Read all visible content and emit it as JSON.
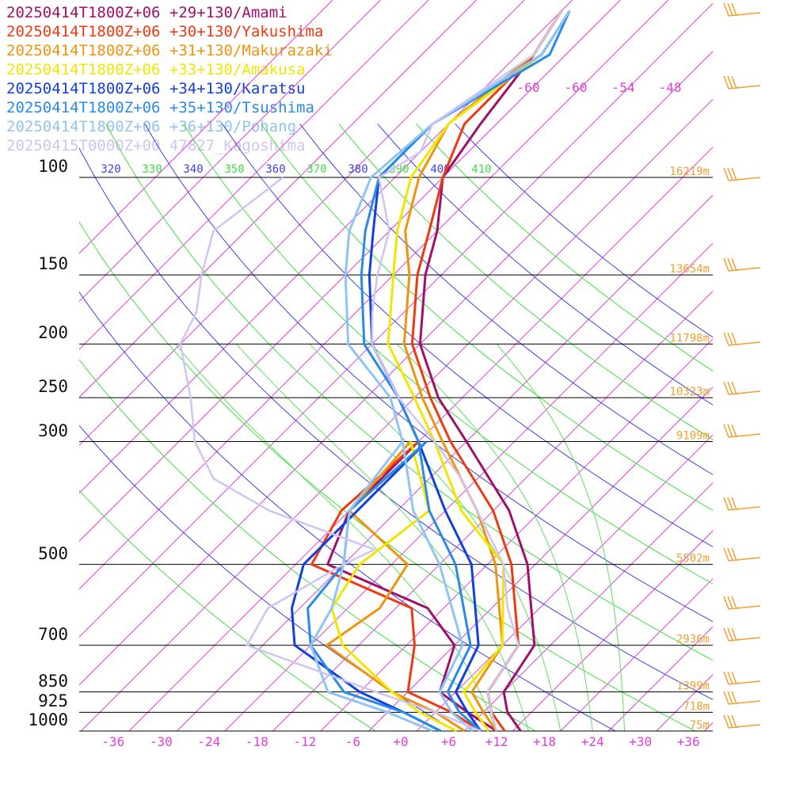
{
  "chart_data": {
    "type": "line",
    "title": "",
    "xlabel": "",
    "ylabel": "",
    "ylim": [
      1000,
      100
    ],
    "xlim": [
      -40,
      40
    ],
    "pressure_levels": [
      100,
      150,
      200,
      250,
      300,
      500,
      700,
      850,
      925,
      1000
    ],
    "pressure_labels": [
      "100",
      "150",
      "200",
      "250",
      "300",
      "500",
      "700",
      "850",
      "925",
      "1000"
    ],
    "temperature_ticks": [
      "-36",
      "-30",
      "-24",
      "-18",
      "-12",
      "-6",
      "+0",
      "+6",
      "+12",
      "+18",
      "+24",
      "+30",
      "+36"
    ],
    "temperature_tick_values": [
      -36,
      -30,
      -24,
      -18,
      -12,
      -6,
      0,
      6,
      12,
      18,
      24,
      30,
      36
    ],
    "upper_temperature_ticks": [
      "-60",
      "-60",
      "-54",
      "-48"
    ],
    "theta_labels": [
      "320",
      "330",
      "340",
      "350",
      "360",
      "370",
      "380",
      "390",
      "400",
      "410"
    ],
    "heights": [
      {
        "p": 100,
        "label": "16219m"
      },
      {
        "p": 150,
        "label": "13654m"
      },
      {
        "p": 200,
        "label": "11798m"
      },
      {
        "p": 250,
        "label": "10323m"
      },
      {
        "p": 300,
        "label": "9109m"
      },
      {
        "p": 500,
        "label": "5502m"
      },
      {
        "p": 700,
        "label": "2936m"
      },
      {
        "p": 850,
        "label": "1399m"
      },
      {
        "p": 925,
        "label": "718m"
      },
      {
        "p": 1000,
        "label": "75m"
      }
    ],
    "series": [
      {
        "name": "20250414T1800Z+06 +29+130/Amami",
        "color": "#a0106a",
        "temperature": [
          [
            1000,
            15
          ],
          [
            925,
            11
          ],
          [
            850,
            8
          ],
          [
            700,
            6
          ],
          [
            500,
            -5
          ],
          [
            400,
            -14
          ],
          [
            300,
            -28
          ],
          [
            250,
            -37
          ],
          [
            200,
            -46
          ],
          [
            150,
            -54
          ],
          [
            125,
            -58
          ],
          [
            100,
            -64
          ],
          [
            80,
            -66
          ],
          [
            60,
            -68
          ],
          [
            50,
            -70
          ]
        ],
        "dewpoint": [
          [
            1000,
            12
          ],
          [
            925,
            6
          ],
          [
            850,
            0
          ],
          [
            700,
            -4
          ],
          [
            600,
            -12
          ],
          [
            500,
            -30
          ],
          [
            400,
            -34
          ],
          [
            300,
            -34
          ]
        ]
      },
      {
        "name": "20250414T1800Z+06 +30+130/Yakushima",
        "color": "#ee3a12",
        "temperature": [
          [
            1000,
            13
          ],
          [
            925,
            9
          ],
          [
            850,
            6
          ],
          [
            700,
            4
          ],
          [
            500,
            -7
          ],
          [
            400,
            -16
          ],
          [
            300,
            -30
          ],
          [
            250,
            -38
          ],
          [
            200,
            -47
          ],
          [
            150,
            -55
          ],
          [
            125,
            -59
          ],
          [
            100,
            -64
          ],
          [
            80,
            -68
          ],
          [
            60,
            -68
          ],
          [
            50,
            -70
          ]
        ],
        "dewpoint": [
          [
            1000,
            10
          ],
          [
            925,
            4
          ],
          [
            850,
            -4
          ],
          [
            700,
            -9
          ],
          [
            600,
            -14
          ],
          [
            500,
            -32
          ],
          [
            400,
            -35
          ],
          [
            300,
            -34
          ]
        ]
      },
      {
        "name": "20250414T1800Z+06 +31+130/Makurazaki",
        "color": "#f0930f",
        "temperature": [
          [
            1000,
            12
          ],
          [
            925,
            8
          ],
          [
            850,
            4
          ],
          [
            700,
            2
          ],
          [
            500,
            -9
          ],
          [
            400,
            -18
          ],
          [
            300,
            -31
          ],
          [
            250,
            -39
          ],
          [
            200,
            -48
          ],
          [
            150,
            -56
          ],
          [
            125,
            -62
          ],
          [
            100,
            -67
          ],
          [
            80,
            -70
          ],
          [
            60,
            -68
          ],
          [
            50,
            -70
          ]
        ],
        "dewpoint": [
          [
            1000,
            8
          ],
          [
            925,
            2
          ],
          [
            850,
            -6
          ],
          [
            700,
            -20
          ],
          [
            600,
            -18
          ],
          [
            500,
            -20
          ],
          [
            400,
            -34
          ],
          [
            300,
            -35
          ]
        ]
      },
      {
        "name": "20250414T1800Z+06 +33+130/Amakusa",
        "color": "#f2e600",
        "temperature": [
          [
            1000,
            11
          ],
          [
            925,
            7
          ],
          [
            850,
            3
          ],
          [
            700,
            2
          ],
          [
            500,
            -8
          ],
          [
            400,
            -20
          ],
          [
            300,
            -32
          ],
          [
            250,
            -40
          ],
          [
            200,
            -50
          ],
          [
            150,
            -58
          ],
          [
            125,
            -63
          ],
          [
            100,
            -68
          ],
          [
            80,
            -70
          ],
          [
            60,
            -67
          ],
          [
            50,
            -69
          ]
        ],
        "dewpoint": [
          [
            1000,
            7
          ],
          [
            925,
            0
          ],
          [
            850,
            -6
          ],
          [
            700,
            -18
          ],
          [
            600,
            -24
          ],
          [
            500,
            -26
          ],
          [
            400,
            -24
          ],
          [
            300,
            -35
          ]
        ]
      },
      {
        "name": "20250414T1800Z+06 +34+130/Karatsu",
        "color": "#1040dd",
        "temperature": [
          [
            1000,
            10
          ],
          [
            925,
            6
          ],
          [
            850,
            2
          ],
          [
            700,
            -1
          ],
          [
            500,
            -12
          ],
          [
            400,
            -22
          ],
          [
            300,
            -34
          ],
          [
            250,
            -42
          ],
          [
            200,
            -52
          ],
          [
            150,
            -61
          ],
          [
            125,
            -66
          ],
          [
            100,
            -72
          ],
          [
            80,
            -72
          ],
          [
            60,
            -67
          ],
          [
            50,
            -69
          ]
        ],
        "dewpoint": [
          [
            1000,
            5
          ],
          [
            925,
            -2
          ],
          [
            850,
            -10
          ],
          [
            700,
            -24
          ],
          [
            600,
            -29
          ],
          [
            500,
            -33
          ],
          [
            400,
            -33
          ],
          [
            300,
            -33
          ]
        ]
      },
      {
        "name": "20250414T1800Z+06 +35+130/Tsushima",
        "color": "#2a8ae8",
        "temperature": [
          [
            1000,
            10
          ],
          [
            925,
            5
          ],
          [
            850,
            1
          ],
          [
            700,
            -2
          ],
          [
            500,
            -14
          ],
          [
            400,
            -24
          ],
          [
            300,
            -34
          ],
          [
            250,
            -42
          ],
          [
            200,
            -53
          ],
          [
            150,
            -62
          ],
          [
            125,
            -67
          ],
          [
            100,
            -72
          ],
          [
            80,
            -72
          ],
          [
            60,
            -66
          ],
          [
            50,
            -69
          ]
        ],
        "dewpoint": [
          [
            1000,
            5
          ],
          [
            925,
            -2
          ],
          [
            850,
            -12
          ],
          [
            700,
            -22
          ],
          [
            600,
            -27
          ],
          [
            500,
            -28
          ],
          [
            400,
            -34
          ],
          [
            300,
            -33
          ]
        ]
      },
      {
        "name": "20250414T1800Z+06 +36+130/Pohang",
        "color": "#90c4f2",
        "temperature": [
          [
            1000,
            9
          ],
          [
            925,
            4
          ],
          [
            850,
            0
          ],
          [
            700,
            -3
          ],
          [
            500,
            -16
          ],
          [
            400,
            -26
          ],
          [
            300,
            -36
          ],
          [
            250,
            -43
          ],
          [
            200,
            -55
          ],
          [
            150,
            -64
          ],
          [
            125,
            -69
          ],
          [
            100,
            -73
          ],
          [
            80,
            -72
          ],
          [
            60,
            -67
          ],
          [
            50,
            -69
          ]
        ],
        "dewpoint": [
          [
            1000,
            4
          ],
          [
            925,
            -4
          ],
          [
            850,
            -14
          ],
          [
            700,
            -22
          ],
          [
            600,
            -24
          ],
          [
            500,
            -28
          ],
          [
            400,
            -34
          ],
          [
            300,
            -36
          ]
        ]
      },
      {
        "name": "20250415T0000Z+00 47827_Kagoshima",
        "color": "#d0c4f2",
        "temperature": [
          [
            1000,
            12
          ],
          [
            925,
            9
          ],
          [
            850,
            6
          ],
          [
            700,
            4
          ],
          [
            600,
            -2
          ],
          [
            500,
            -8
          ],
          [
            400,
            -18
          ],
          [
            350,
            -24
          ],
          [
            300,
            -32
          ],
          [
            250,
            -42
          ],
          [
            200,
            -52
          ],
          [
            175,
            -56
          ],
          [
            150,
            -60
          ],
          [
            125,
            -64
          ],
          [
            100,
            -72
          ],
          [
            90,
            -70
          ],
          [
            80,
            -72
          ],
          [
            60,
            -68
          ],
          [
            50,
            -70
          ]
        ],
        "dewpoint": [
          [
            1000,
            10
          ],
          [
            925,
            2
          ],
          [
            850,
            -8
          ],
          [
            700,
            -30
          ],
          [
            600,
            -32
          ],
          [
            500,
            -28
          ],
          [
            470,
            -26
          ],
          [
            400,
            -44
          ],
          [
            350,
            -55
          ],
          [
            300,
            -62
          ],
          [
            250,
            -68
          ],
          [
            200,
            -76
          ],
          [
            175,
            -78
          ],
          [
            150,
            -82
          ],
          [
            125,
            -86
          ],
          [
            100,
            -84
          ]
        ]
      }
    ]
  }
}
